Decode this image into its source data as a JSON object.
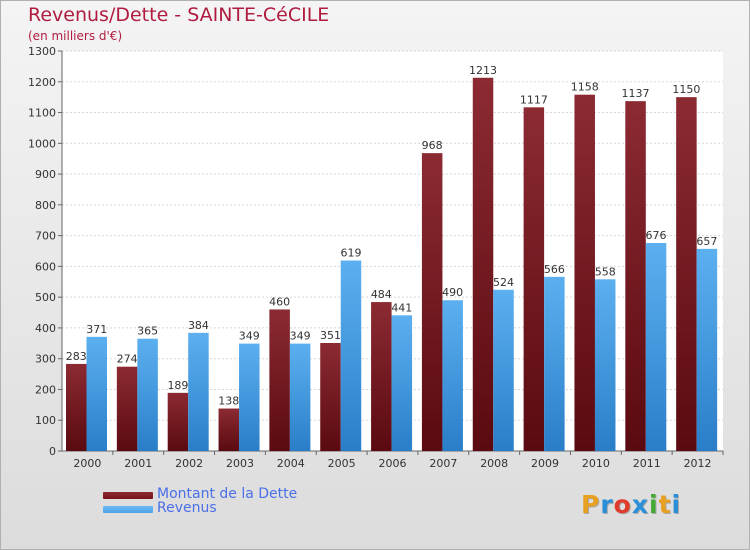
{
  "chart_data": {
    "type": "bar",
    "title": "Revenus/Dette - SAINTE-CéCILE",
    "subtitle": "(en milliers d'€)",
    "categories": [
      "2000",
      "2001",
      "2002",
      "2003",
      "2004",
      "2005",
      "2006",
      "2007",
      "2008",
      "2009",
      "2010",
      "2011",
      "2012"
    ],
    "series": [
      {
        "name": "Montant de la Dette",
        "color": "#7a1218",
        "values": [
          283,
          274,
          189,
          138,
          460,
          351,
          484,
          968,
          1213,
          1117,
          1158,
          1137,
          1150
        ]
      },
      {
        "name": "Revenus",
        "color": "#4da3e8",
        "values": [
          371,
          365,
          384,
          349,
          349,
          619,
          441,
          490,
          524,
          566,
          558,
          676,
          657
        ]
      }
    ],
    "ylim": [
      0,
      1300
    ],
    "yticks": [
      0,
      100,
      200,
      300,
      400,
      500,
      600,
      700,
      800,
      900,
      1000,
      1100,
      1200,
      1300
    ],
    "grid": true,
    "legend_position": "bottom-left"
  },
  "logo": {
    "text": "Proxiti",
    "colors": [
      "#e8a020",
      "#2a8fd8",
      "#e03a2a",
      "#2a8fd8",
      "#44aa33",
      "#e8a020",
      "#2a8fd8"
    ]
  }
}
